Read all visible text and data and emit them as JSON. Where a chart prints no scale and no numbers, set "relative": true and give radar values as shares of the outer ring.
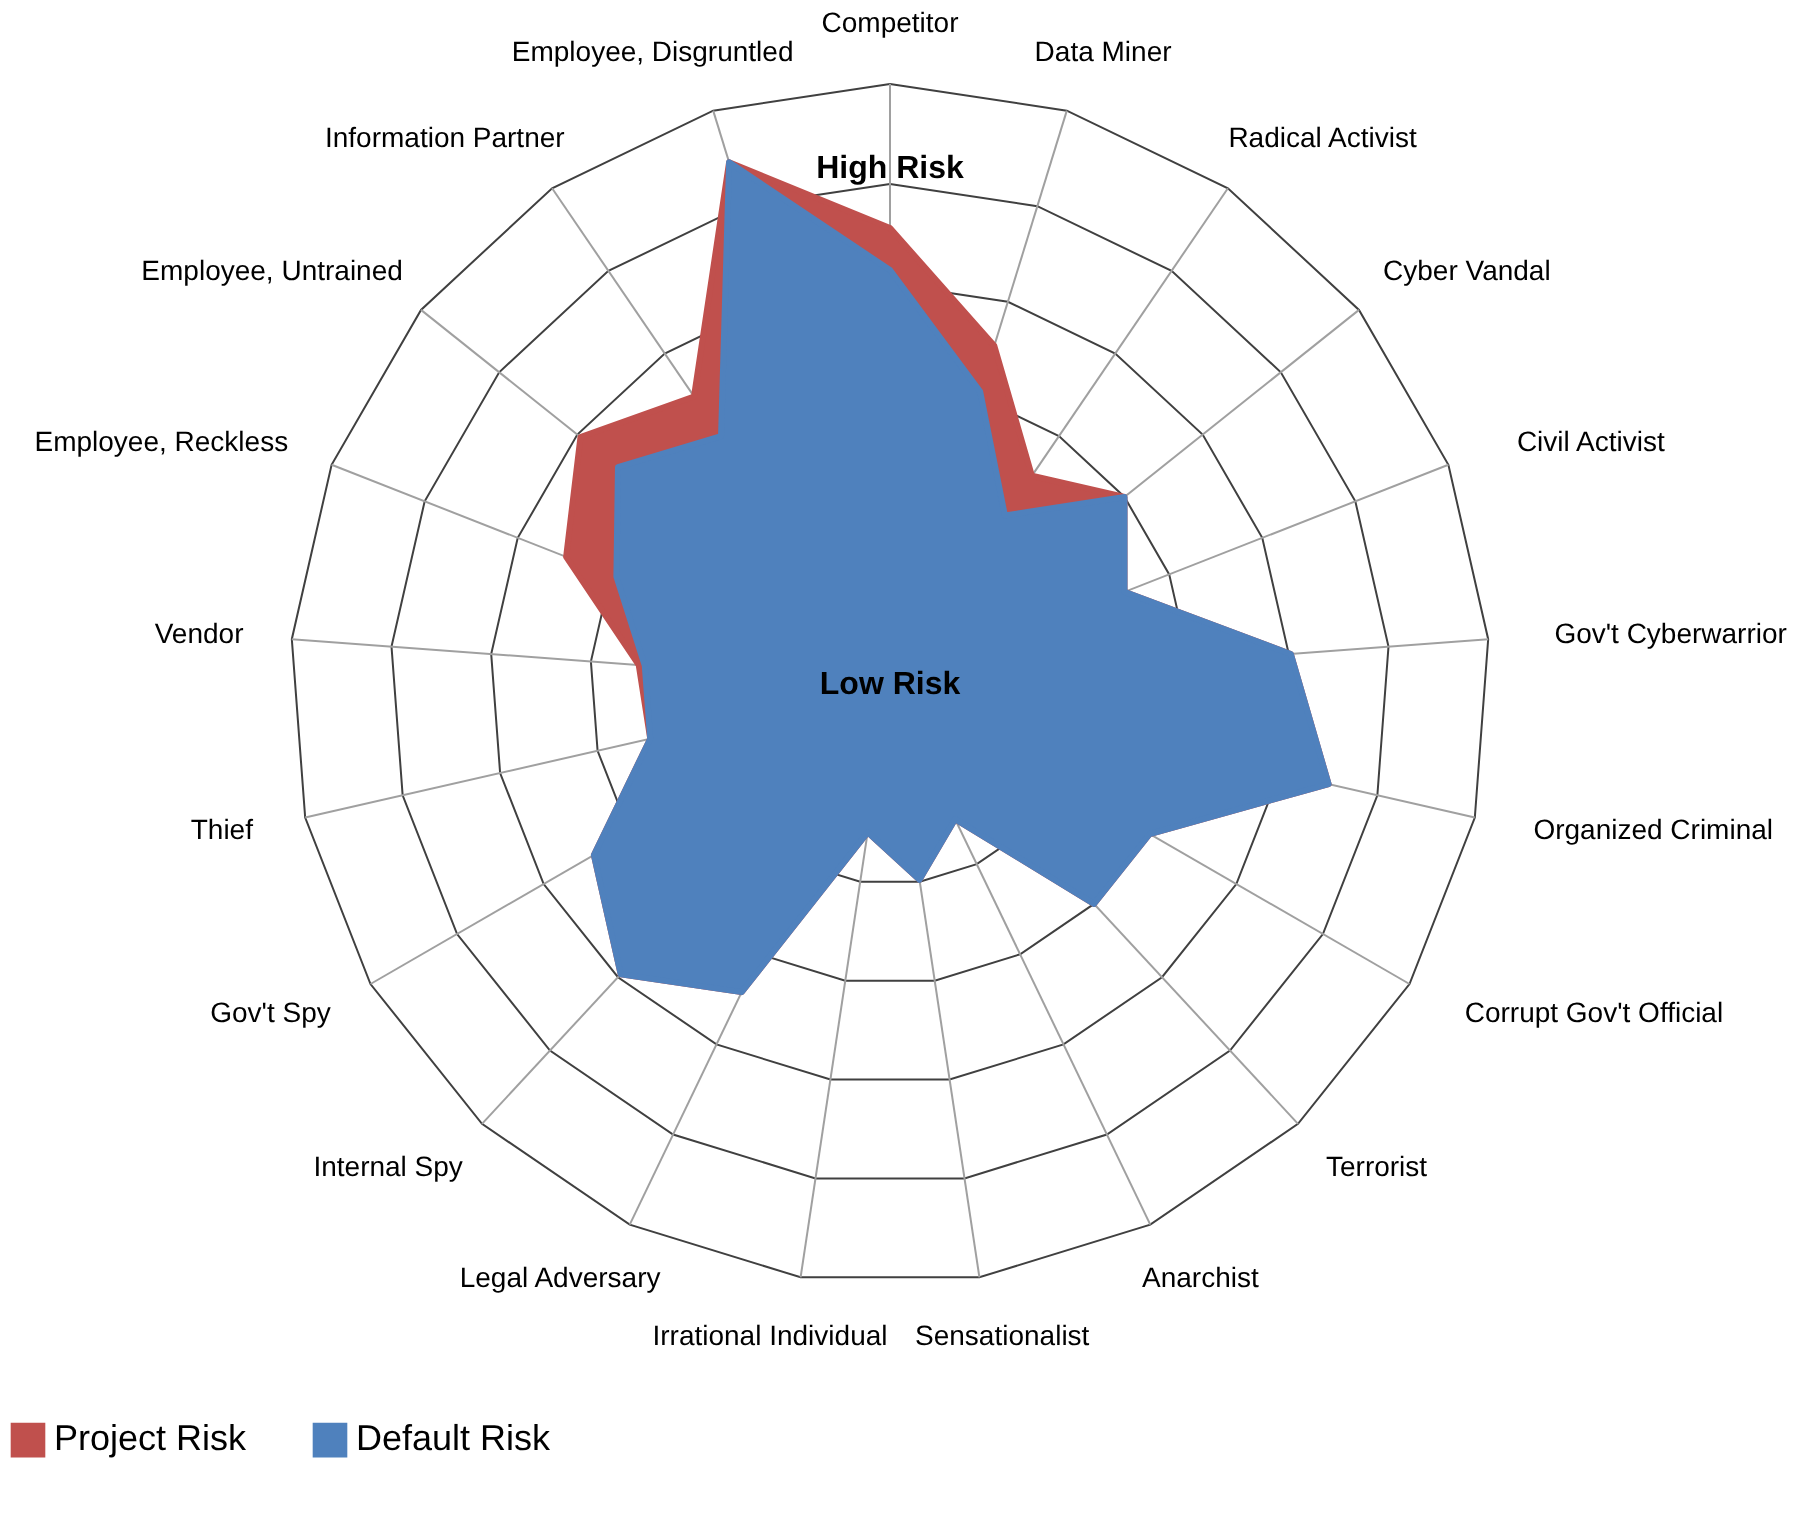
{
  "chart_data": {
    "type": "radar",
    "relative": true,
    "grid": true,
    "legend": "bottom",
    "marker": "none",
    "categories": [
      "Competitor",
      "Data Miner",
      "Radical Activist",
      "Cyber Vandal",
      "Civil Activist",
      "Gov't Cyberwarrior",
      "Organized Criminal",
      "Corrupt Gov't Official",
      "Terrorist",
      "Anarchist",
      "Sensationalist",
      "Irrational Individual",
      "Legal Adversary",
      "Internal Spy",
      "Gov't Spy",
      "Thief",
      "Vendor",
      "Employee, Reckless",
      "Employee, Untrained",
      "Information Partner",
      "Employee, Disgruntled"
    ],
    "series": [
      {
        "name": "Project Risk",
        "color": "#c0504d",
        "values": [
          0.76,
          0.59,
          0.42,
          0.5,
          0.42,
          0.67,
          0.75,
          0.5,
          0.5,
          0.25,
          0.33,
          0.25,
          0.57,
          0.66,
          0.57,
          0.41,
          0.42,
          0.58,
          0.66,
          0.58,
          0.91
        ]
      },
      {
        "name": "Default Risk",
        "color": "#4f81bd",
        "values": [
          0.69,
          0.51,
          0.34,
          0.5,
          0.42,
          0.67,
          0.75,
          0.5,
          0.5,
          0.25,
          0.33,
          0.25,
          0.57,
          0.66,
          0.57,
          0.41,
          0.41,
          0.49,
          0.58,
          0.5,
          0.91
        ]
      }
    ],
    "annotations": [
      "High Risk",
      "Low Risk"
    ]
  }
}
